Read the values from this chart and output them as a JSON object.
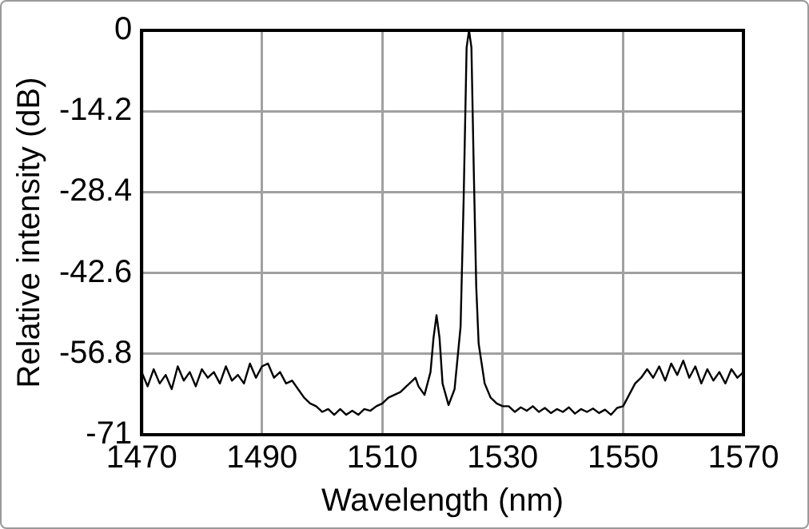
{
  "chart_data": {
    "type": "line",
    "xlabel": "Wavelength (nm)",
    "ylabel": "Relative intensity (dB)",
    "xlim": [
      1470,
      1570
    ],
    "ylim": [
      -71,
      0
    ],
    "xticks": [
      1470,
      1490,
      1510,
      1530,
      1550,
      1570
    ],
    "yticks": [
      -71,
      -56.8,
      -42.6,
      -28.4,
      -14.2,
      0
    ],
    "grid": true,
    "legend": false,
    "marker": "none",
    "line_style": "solid",
    "series": [
      {
        "color": "#000000",
        "x": [
          1470,
          1471,
          1472,
          1473,
          1474,
          1475,
          1476,
          1477,
          1478,
          1479,
          1480,
          1481,
          1482,
          1483,
          1484,
          1485,
          1486,
          1487,
          1488,
          1489,
          1490,
          1491,
          1492,
          1493,
          1494,
          1495,
          1496,
          1497,
          1498,
          1499,
          1500,
          1501,
          1502,
          1503,
          1504,
          1505,
          1506,
          1507,
          1508,
          1509,
          1510,
          1511,
          1512,
          1513,
          1514,
          1515,
          1515.5,
          1516,
          1517,
          1518,
          1518.5,
          1519,
          1519.5,
          1520,
          1521,
          1522,
          1523,
          1523.5,
          1524,
          1524.4,
          1524.8,
          1525.2,
          1525.6,
          1526,
          1527,
          1528,
          1529,
          1530,
          1531,
          1532,
          1533,
          1534,
          1535,
          1536,
          1537,
          1538,
          1539,
          1540,
          1541,
          1542,
          1543,
          1544,
          1545,
          1546,
          1547,
          1548,
          1549,
          1550,
          1551,
          1552,
          1553,
          1554,
          1555,
          1556,
          1557,
          1558,
          1559,
          1560,
          1561,
          1562,
          1563,
          1564,
          1565,
          1566,
          1567,
          1568,
          1569,
          1570
        ],
        "values": [
          -60,
          -62.5,
          -59.5,
          -62,
          -60.5,
          -63,
          -59,
          -61.5,
          -60,
          -62.5,
          -59.5,
          -61,
          -60,
          -62,
          -59,
          -61.5,
          -60.5,
          -62,
          -58.5,
          -61,
          -59,
          -58.5,
          -61,
          -60,
          -62,
          -61.5,
          -63,
          -64.5,
          -65.5,
          -66,
          -67,
          -66.5,
          -67.5,
          -66.5,
          -67.5,
          -66.8,
          -67.5,
          -66.5,
          -66.8,
          -66,
          -65.5,
          -64.5,
          -64,
          -63.5,
          -62.5,
          -61.5,
          -61,
          -62.5,
          -64,
          -60,
          -54,
          -50,
          -54,
          -62,
          -65.8,
          -63,
          -52,
          -30,
          -3,
          0,
          -3,
          -25,
          -45,
          -55,
          -62,
          -64.5,
          -65.5,
          -66,
          -66,
          -67,
          -66.2,
          -66.8,
          -66,
          -67,
          -66.3,
          -67.2,
          -66.5,
          -67,
          -66.2,
          -67.3,
          -66.5,
          -67,
          -66.4,
          -67.2,
          -66.6,
          -67.5,
          -66.3,
          -66,
          -64,
          -62,
          -61,
          -59.5,
          -61,
          -59,
          -61.5,
          -58.5,
          -60.5,
          -58,
          -61,
          -59,
          -62,
          -59.5,
          -61.5,
          -60,
          -62,
          -59.5,
          -61,
          -60
        ]
      }
    ]
  }
}
